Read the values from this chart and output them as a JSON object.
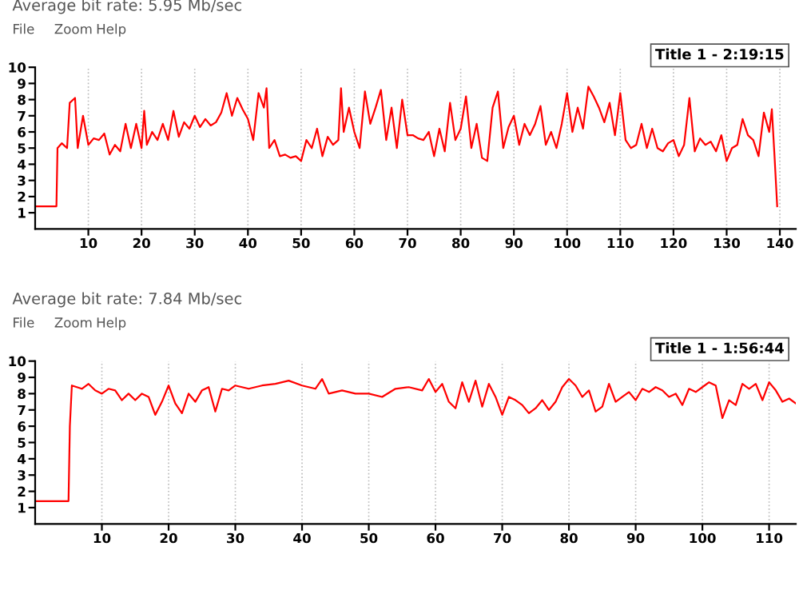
{
  "chart_data": [
    {
      "type": "line",
      "title": "Average bit rate: 5.95 Mb/sec",
      "annotations": [
        "File",
        "Zoom",
        "Help",
        "Title 1 - 2:19:15"
      ],
      "xlim": [
        0,
        143
      ],
      "ylim": [
        0,
        10
      ],
      "xticks": [
        10,
        20,
        30,
        40,
        50,
        60,
        70,
        80,
        90,
        100,
        110,
        120,
        130,
        140
      ],
      "yticks": [
        1,
        2,
        3,
        4,
        5,
        6,
        7,
        8,
        9,
        10
      ],
      "grid": "x",
      "marker": "none",
      "line_style": "solid",
      "series": [
        {
          "color": "#ff0000",
          "x": [
            0,
            4,
            4.2,
            5,
            6,
            6.5,
            7.5,
            8,
            9,
            10,
            11,
            12,
            13,
            14,
            15,
            16,
            17,
            18,
            19,
            20,
            20.5,
            21,
            22,
            23,
            24,
            25,
            26,
            27,
            28,
            29,
            30,
            31,
            32,
            33,
            34,
            35,
            36,
            37,
            38,
            39,
            40,
            41,
            42,
            43,
            43.5,
            44,
            45,
            46,
            47,
            48,
            49,
            50,
            51,
            52,
            53,
            54,
            55,
            56,
            57,
            57.5,
            58,
            59,
            60,
            61,
            62,
            63,
            64,
            65,
            66,
            67,
            68,
            69,
            70,
            71,
            72,
            73,
            74,
            75,
            76,
            77,
            78,
            79,
            80,
            81,
            82,
            83,
            84,
            85,
            86,
            87,
            88,
            89,
            90,
            91,
            92,
            93,
            94,
            95,
            96,
            97,
            98,
            99,
            100,
            101,
            102,
            103,
            104,
            105,
            106,
            107,
            108,
            109,
            110,
            111,
            112,
            113,
            114,
            115,
            116,
            117,
            118,
            119,
            120,
            121,
            122,
            123,
            124,
            125,
            126,
            127,
            128,
            129,
            130,
            131,
            132,
            133,
            134,
            135,
            136,
            137,
            138,
            138.5,
            139,
            139.5
          ],
          "values": [
            1.4,
            1.4,
            5,
            5.3,
            5,
            7.8,
            8.1,
            5,
            7,
            5.2,
            5.6,
            5.5,
            5.9,
            4.6,
            5.2,
            4.8,
            6.5,
            5,
            6.5,
            5,
            7.3,
            5.2,
            6,
            5.5,
            6.5,
            5.5,
            7.3,
            5.7,
            6.6,
            6.2,
            7,
            6.3,
            6.8,
            6.4,
            6.6,
            7.2,
            8.4,
            7,
            8.1,
            7.4,
            6.8,
            5.5,
            8.4,
            7.5,
            8.7,
            5,
            5.5,
            4.5,
            4.6,
            4.4,
            4.5,
            4.2,
            5.5,
            5,
            6.2,
            4.5,
            5.7,
            5.2,
            5.5,
            8.7,
            6,
            7.5,
            6,
            5,
            8.5,
            6.5,
            7.5,
            8.6,
            5.5,
            7.5,
            5,
            8,
            5.8,
            5.8,
            5.6,
            5.5,
            6,
            4.5,
            6.2,
            4.8,
            7.8,
            5.5,
            6.2,
            8.2,
            5,
            6.5,
            4.4,
            4.2,
            7.5,
            8.5,
            5,
            6.3,
            7,
            5.2,
            6.5,
            5.8,
            6.5,
            7.6,
            5.2,
            6,
            5,
            6.5,
            8.4,
            6,
            7.5,
            6.2,
            8.8,
            8.2,
            7.5,
            6.6,
            7.8,
            5.8,
            8.4,
            5.5,
            5,
            5.2,
            6.5,
            5,
            6.2,
            5,
            4.8,
            5.3,
            5.5,
            4.5,
            5.2,
            8.1,
            4.8,
            5.6,
            5.2,
            5.4,
            4.8,
            5.8,
            4.2,
            5,
            5.2,
            6.8,
            5.8,
            5.5,
            4.5,
            7.2,
            6,
            7.4,
            4.5,
            1.4
          ]
        }
      ]
    },
    {
      "type": "line",
      "title": "Average bit rate: 7.84 Mb/sec",
      "annotations": [
        "File",
        "Zoom",
        "Help",
        "Title 1 - 1:56:44"
      ],
      "xlim": [
        0,
        114
      ],
      "ylim": [
        0,
        10
      ],
      "xticks": [
        10,
        20,
        30,
        40,
        50,
        60,
        70,
        80,
        90,
        100,
        110
      ],
      "yticks": [
        1,
        2,
        3,
        4,
        5,
        6,
        7,
        8,
        9,
        10
      ],
      "grid": "x",
      "marker": "none",
      "line_style": "solid",
      "series": [
        {
          "color": "#ff0000",
          "x": [
            0,
            5,
            5.2,
            5.5,
            7,
            8,
            9,
            10,
            11,
            12,
            13,
            14,
            15,
            16,
            17,
            18,
            19,
            20,
            21,
            22,
            23,
            24,
            25,
            26,
            27,
            28,
            29,
            30,
            32,
            34,
            36,
            38,
            40,
            42,
            43,
            44,
            46,
            48,
            50,
            52,
            54,
            56,
            58,
            59,
            60,
            61,
            62,
            63,
            64,
            65,
            66,
            67,
            68,
            69,
            70,
            71,
            72,
            73,
            74,
            75,
            76,
            77,
            78,
            79,
            80,
            81,
            82,
            83,
            84,
            85,
            86,
            87,
            88,
            89,
            90,
            91,
            92,
            93,
            94,
            95,
            96,
            97,
            98,
            99,
            100,
            101,
            102,
            103,
            104,
            105,
            106,
            107,
            108,
            109,
            110,
            111,
            112,
            113,
            114
          ],
          "values": [
            1.4,
            1.4,
            6,
            8.5,
            8.3,
            8.6,
            8.2,
            8,
            8.3,
            8.2,
            7.6,
            8,
            7.6,
            8,
            7.8,
            6.7,
            7.5,
            8.5,
            7.4,
            6.8,
            8,
            7.5,
            8.2,
            8.4,
            6.9,
            8.3,
            8.2,
            8.5,
            8.3,
            8.5,
            8.6,
            8.8,
            8.5,
            8.3,
            8.9,
            8,
            8.2,
            8,
            8,
            7.8,
            8.3,
            8.4,
            8.2,
            8.9,
            8.1,
            8.6,
            7.5,
            7.1,
            8.7,
            7.5,
            8.8,
            7.2,
            8.6,
            7.8,
            6.7,
            7.8,
            7.6,
            7.3,
            6.8,
            7.1,
            7.6,
            7,
            7.5,
            8.4,
            8.9,
            8.5,
            7.8,
            8.2,
            6.9,
            7.2,
            8.6,
            7.5,
            7.8,
            8.1,
            7.6,
            8.3,
            8.1,
            8.4,
            8.2,
            7.8,
            8,
            7.3,
            8.3,
            8.1,
            8.4,
            8.7,
            8.5,
            6.5,
            7.6,
            7.3,
            8.6,
            8.3,
            8.6,
            7.6,
            8.7,
            8.2,
            7.5,
            7.7,
            7.4
          ]
        }
      ]
    }
  ]
}
